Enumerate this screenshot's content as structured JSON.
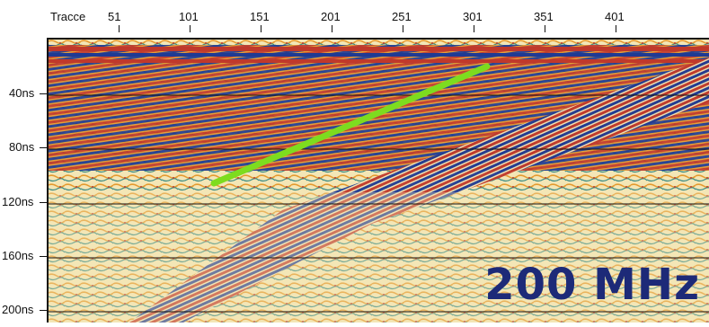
{
  "header": {
    "trace_title": "Tracce",
    "trace_ticks": [
      "51",
      "101",
      "151",
      "201",
      "251",
      "301",
      "351",
      "401"
    ]
  },
  "y_axis": {
    "time_ticks": [
      "40ns",
      "80ns",
      "120ns",
      "160ns",
      "200ns"
    ]
  },
  "annotation": {
    "frequency_label": "200 MHz"
  },
  "colors": {
    "red": "#c0392b",
    "blue": "#1f3a93",
    "orange": "#e59a2f",
    "cream": "#f3e6b6",
    "teal": "#3b8c86",
    "highlight_line": "#7ddc1f",
    "label_blue": "#1d2a78"
  }
}
